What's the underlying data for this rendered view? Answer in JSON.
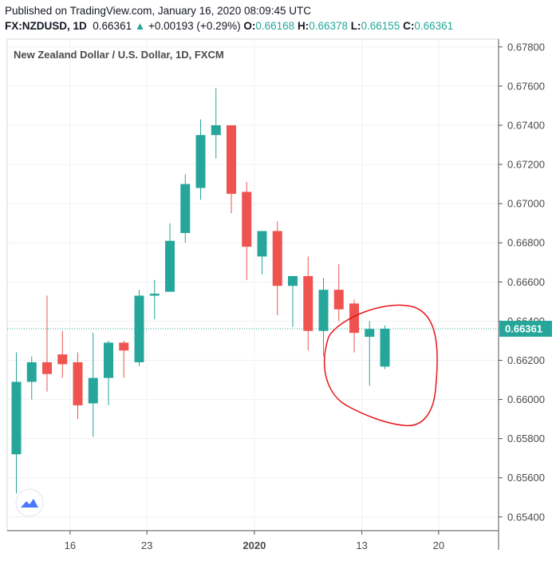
{
  "header": {
    "published": "Published on TradingView.com, January 16, 2020 08:09:45 UTC",
    "symbol": "FX:NZDUSD, 1D",
    "last": "0.66361",
    "change_arrow": "▲",
    "change": "+0.00193 (+0.29%)",
    "o_label": "O:",
    "o_value": "0.66168",
    "h_label": "H:",
    "h_value": "0.66378",
    "l_label": "L:",
    "l_value": "0.66155",
    "c_label": "C:",
    "c_value": "0.66361"
  },
  "colors": {
    "up": "#26a69a",
    "down": "#ef5350",
    "grid": "#eef0f3",
    "axis": "#50535e",
    "annotation": "#e8141b",
    "last_price_line": "#26a69a"
  },
  "chart_data": {
    "type": "candlestick",
    "title": "New Zealand Dollar / U.S. Dollar, 1D, FXCM",
    "ylim": [
      0.6533,
      0.6784
    ],
    "yticks": [
      "0.67800",
      "0.67600",
      "0.67400",
      "0.67200",
      "0.67000",
      "0.66800",
      "0.66600",
      "0.66400",
      "0.66200",
      "0.66000",
      "0.65800",
      "0.65600",
      "0.65400"
    ],
    "xticks": [
      {
        "label": "16",
        "index": 3.5,
        "bold": false
      },
      {
        "label": "23",
        "index": 8.5,
        "bold": false
      },
      {
        "label": "2020",
        "index": 15.5,
        "bold": true
      },
      {
        "label": "13",
        "index": 22.5,
        "bold": false
      },
      {
        "label": "20",
        "index": 27.5,
        "bold": false
      }
    ],
    "last_price": 0.66361,
    "last_price_label": "0.66361",
    "candles": [
      {
        "o": 0.6572,
        "h": 0.6624,
        "l": 0.6552,
        "c": 0.6609
      },
      {
        "o": 0.6609,
        "h": 0.6622,
        "l": 0.66,
        "c": 0.6619
      },
      {
        "o": 0.6619,
        "h": 0.6653,
        "l": 0.6604,
        "c": 0.6613
      },
      {
        "o": 0.6623,
        "h": 0.6635,
        "l": 0.6611,
        "c": 0.6618
      },
      {
        "o": 0.6619,
        "h": 0.6624,
        "l": 0.659,
        "c": 0.6597
      },
      {
        "o": 0.6598,
        "h": 0.6634,
        "l": 0.6581,
        "c": 0.6611
      },
      {
        "o": 0.6611,
        "h": 0.663,
        "l": 0.6597,
        "c": 0.6629
      },
      {
        "o": 0.6629,
        "h": 0.663,
        "l": 0.6611,
        "c": 0.6625
      },
      {
        "o": 0.6619,
        "h": 0.6656,
        "l": 0.6617,
        "c": 0.6653
      },
      {
        "o": 0.6653,
        "h": 0.6661,
        "l": 0.6641,
        "c": 0.6654
      },
      {
        "o": 0.6655,
        "h": 0.669,
        "l": 0.6655,
        "c": 0.6681
      },
      {
        "o": 0.6685,
        "h": 0.6715,
        "l": 0.668,
        "c": 0.671
      },
      {
        "o": 0.6708,
        "h": 0.6743,
        "l": 0.6702,
        "c": 0.6735
      },
      {
        "o": 0.6735,
        "h": 0.6759,
        "l": 0.6723,
        "c": 0.674
      },
      {
        "o": 0.674,
        "h": 0.674,
        "l": 0.6695,
        "c": 0.6705
      },
      {
        "o": 0.6706,
        "h": 0.6711,
        "l": 0.6661,
        "c": 0.6678
      },
      {
        "o": 0.6673,
        "h": 0.6686,
        "l": 0.6664,
        "c": 0.6686
      },
      {
        "o": 0.6686,
        "h": 0.6691,
        "l": 0.6643,
        "c": 0.6658
      },
      {
        "o": 0.6658,
        "h": 0.6662,
        "l": 0.6637,
        "c": 0.6663
      },
      {
        "o": 0.6663,
        "h": 0.6673,
        "l": 0.6625,
        "c": 0.6635
      },
      {
        "o": 0.6635,
        "h": 0.6662,
        "l": 0.6622,
        "c": 0.6656
      },
      {
        "o": 0.6656,
        "h": 0.6669,
        "l": 0.664,
        "c": 0.6646
      },
      {
        "o": 0.6649,
        "h": 0.6651,
        "l": 0.6624,
        "c": 0.6634
      },
      {
        "o": 0.6632,
        "h": 0.664,
        "l": 0.6607,
        "c": 0.6636
      },
      {
        "o": 0.66168,
        "h": 0.66378,
        "l": 0.66155,
        "c": 0.66361
      }
    ],
    "annotation": {
      "type": "freehand-circle",
      "color": "#e8141b"
    }
  }
}
